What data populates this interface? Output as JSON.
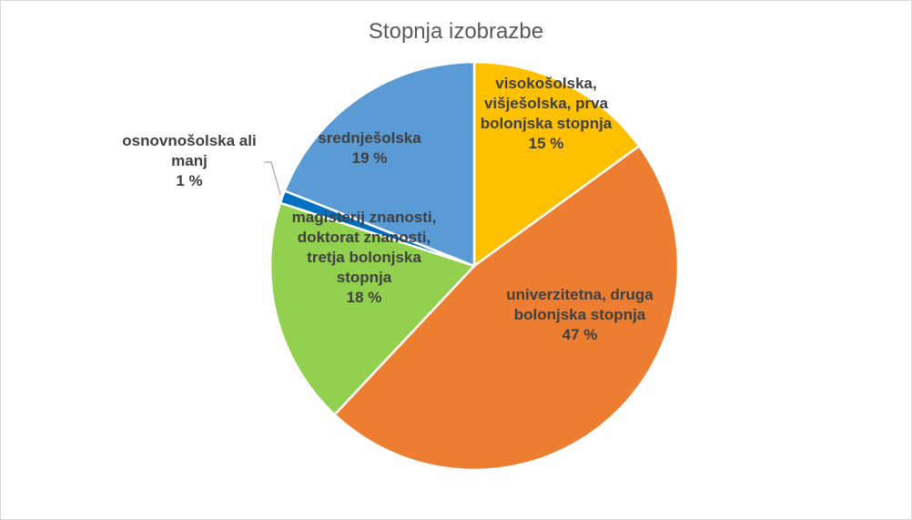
{
  "chart_data": {
    "type": "pie",
    "title": "Stopnja izobrazbe",
    "slices": [
      {
        "label_lines": [
          "visokošolska,",
          "višješolska, prva",
          "bolonjska stopnja"
        ],
        "value": 15,
        "value_label": "15 %",
        "color": "#ffc000"
      },
      {
        "label_lines": [
          "univerzitetna, druga",
          "bolonjska stopnja"
        ],
        "value": 47,
        "value_label": "47 %",
        "color": "#ed7d31"
      },
      {
        "label_lines": [
          "magisterij znanosti,",
          "doktorat znanosti,",
          "tretja bolonjska",
          "stopnja"
        ],
        "value": 18,
        "value_label": "18 %",
        "color": "#92d050"
      },
      {
        "label_lines": [
          "osnovnošolska ali",
          "manj"
        ],
        "value": 1,
        "value_label": "1 %",
        "color": "#0070c0"
      },
      {
        "label_lines": [
          "srednješolska"
        ],
        "value": 19,
        "value_label": "19 %",
        "color": "#5b9bd5"
      }
    ],
    "slice_border_color": "#ffffff",
    "leader_line_color": "#a6a6a6"
  }
}
